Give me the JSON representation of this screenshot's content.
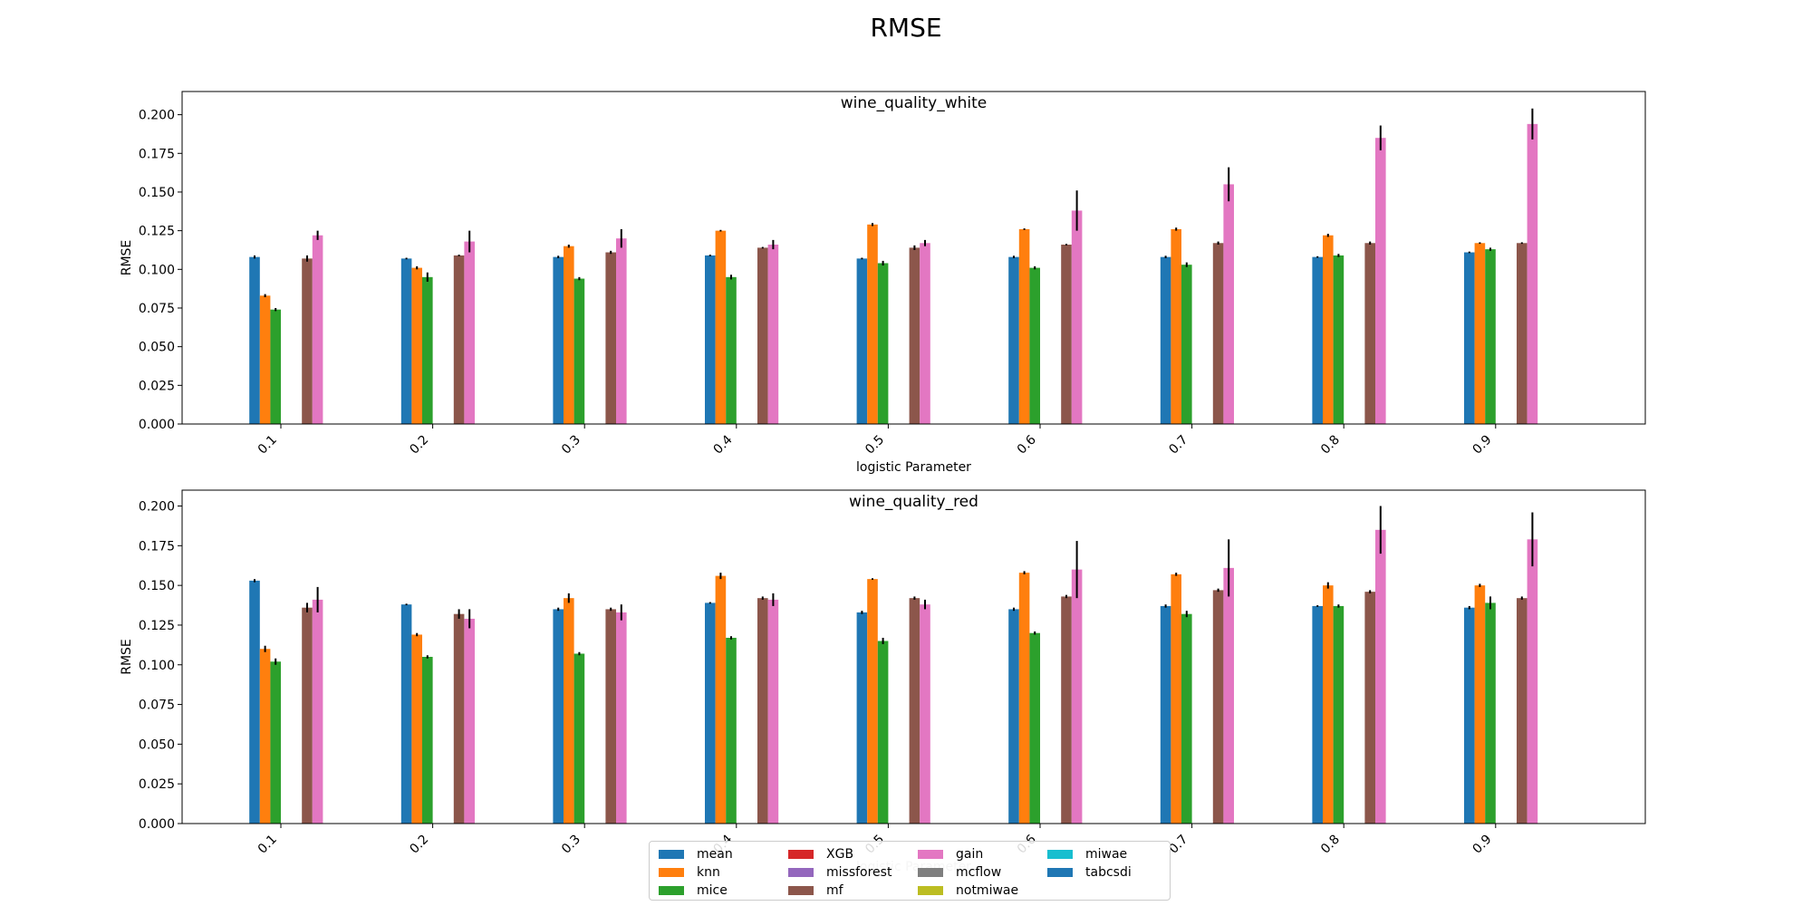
{
  "figure_title": "RMSE",
  "legend": [
    {
      "name": "mean",
      "color": "#1f77b4"
    },
    {
      "name": "knn",
      "color": "#ff7f0e"
    },
    {
      "name": "mice",
      "color": "#2ca02c"
    },
    {
      "name": "XGB",
      "color": "#d62728"
    },
    {
      "name": "missforest",
      "color": "#9467bd"
    },
    {
      "name": "mf",
      "color": "#8c564b"
    },
    {
      "name": "gain",
      "color": "#e377c2"
    },
    {
      "name": "mcflow",
      "color": "#7f7f7f"
    },
    {
      "name": "notmiwae",
      "color": "#bcbd22"
    },
    {
      "name": "miwae",
      "color": "#17becf"
    },
    {
      "name": "tabcsdi",
      "color": "#1f77b4"
    }
  ],
  "chart_data": [
    {
      "type": "bar",
      "title": "wine_quality_white",
      "xlabel": "logistic Parameter",
      "ylabel": "RMSE",
      "ylim": [
        0,
        0.215
      ],
      "yticks": [
        "0.000",
        "0.025",
        "0.050",
        "0.075",
        "0.100",
        "0.125",
        "0.150",
        "0.175",
        "0.200"
      ],
      "categories": [
        "0.1",
        "0.2",
        "0.3",
        "0.4",
        "0.5",
        "0.6",
        "0.7",
        "0.8",
        "0.9"
      ],
      "series": [
        {
          "name": "mean",
          "values": [
            0.108,
            0.107,
            0.108,
            0.109,
            0.107,
            0.108,
            0.108,
            0.108,
            0.111
          ],
          "errors": [
            0.001,
            0.0005,
            0.0008,
            0.0005,
            0.0005,
            0.0008,
            0.0008,
            0.0005,
            0.0005
          ]
        },
        {
          "name": "knn",
          "values": [
            0.083,
            0.101,
            0.115,
            0.125,
            0.129,
            0.126,
            0.126,
            0.122,
            0.117
          ],
          "errors": [
            0.001,
            0.001,
            0.001,
            0.0005,
            0.001,
            0.0005,
            0.001,
            0.001,
            0.0005
          ]
        },
        {
          "name": "mice",
          "values": [
            0.074,
            0.095,
            0.094,
            0.095,
            0.104,
            0.101,
            0.103,
            0.109,
            0.113
          ],
          "errors": [
            0.001,
            0.003,
            0.001,
            0.0015,
            0.0015,
            0.001,
            0.0015,
            0.001,
            0.001
          ]
        },
        {
          "name": "mf",
          "values": [
            0.107,
            0.109,
            0.111,
            0.114,
            0.114,
            0.116,
            0.117,
            0.117,
            0.117
          ],
          "errors": [
            0.002,
            0.0005,
            0.001,
            0.0005,
            0.0015,
            0.0005,
            0.001,
            0.001,
            0.0005
          ]
        },
        {
          "name": "gain",
          "values": [
            0.122,
            0.118,
            0.12,
            0.116,
            0.117,
            0.138,
            0.155,
            0.185,
            0.194
          ],
          "errors": [
            0.003,
            0.007,
            0.006,
            0.003,
            0.002,
            0.013,
            0.011,
            0.008,
            0.01
          ]
        }
      ]
    },
    {
      "type": "bar",
      "title": "wine_quality_red",
      "xlabel": "logistic Parameter",
      "ylabel": "RMSE",
      "ylim": [
        0,
        0.21
      ],
      "yticks": [
        "0.000",
        "0.025",
        "0.050",
        "0.075",
        "0.100",
        "0.125",
        "0.150",
        "0.175",
        "0.200"
      ],
      "categories": [
        "0.1",
        "0.2",
        "0.3",
        "0.4",
        "0.5",
        "0.6",
        "0.7",
        "0.8",
        "0.9"
      ],
      "series": [
        {
          "name": "mean",
          "values": [
            0.153,
            0.138,
            0.135,
            0.139,
            0.133,
            0.135,
            0.137,
            0.137,
            0.136
          ],
          "errors": [
            0.001,
            0.0005,
            0.001,
            0.0005,
            0.001,
            0.001,
            0.001,
            0.0005,
            0.001
          ]
        },
        {
          "name": "knn",
          "values": [
            0.11,
            0.119,
            0.142,
            0.156,
            0.154,
            0.158,
            0.157,
            0.15,
            0.15
          ],
          "errors": [
            0.002,
            0.001,
            0.003,
            0.002,
            0.0005,
            0.001,
            0.001,
            0.002,
            0.001
          ]
        },
        {
          "name": "mice",
          "values": [
            0.102,
            0.105,
            0.107,
            0.117,
            0.115,
            0.12,
            0.132,
            0.137,
            0.139
          ],
          "errors": [
            0.002,
            0.001,
            0.001,
            0.001,
            0.002,
            0.001,
            0.002,
            0.001,
            0.004
          ]
        },
        {
          "name": "mf",
          "values": [
            0.136,
            0.132,
            0.135,
            0.142,
            0.142,
            0.143,
            0.147,
            0.146,
            0.142
          ],
          "errors": [
            0.003,
            0.003,
            0.001,
            0.001,
            0.001,
            0.001,
            0.001,
            0.001,
            0.001
          ]
        },
        {
          "name": "gain",
          "values": [
            0.141,
            0.129,
            0.133,
            0.141,
            0.138,
            0.16,
            0.161,
            0.185,
            0.179
          ],
          "errors": [
            0.008,
            0.006,
            0.005,
            0.004,
            0.003,
            0.018,
            0.018,
            0.015,
            0.017
          ]
        }
      ]
    }
  ]
}
